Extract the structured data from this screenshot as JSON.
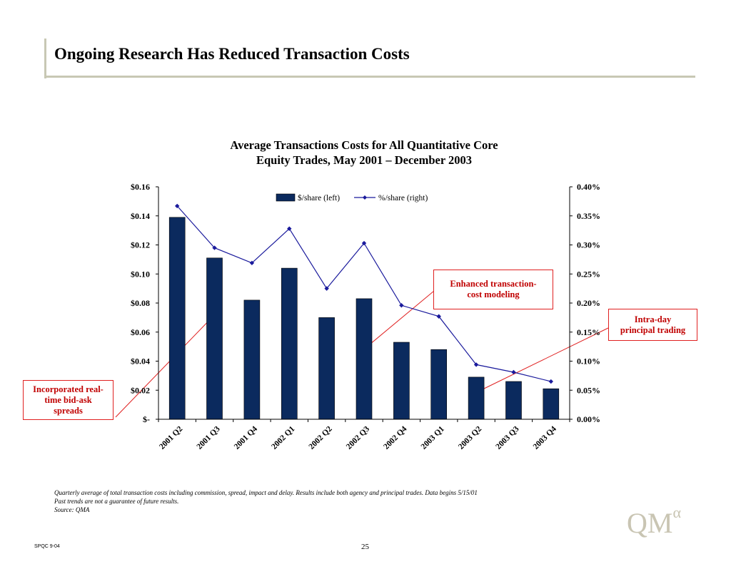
{
  "page": {
    "title": "Ongoing Research Has Reduced Transaction Costs",
    "footnote_lines": [
      "Quarterly average of total transaction costs including commission, spread, impact and delay.  Results include both agency and principal trades.  Data begins 5/15/01",
      "Past trends are not a guarantee of future results.",
      "Source: QMA"
    ],
    "footer_code": "SPQC 9-04",
    "page_number": "25",
    "logo_text": "QM",
    "logo_superscript": "α"
  },
  "chart_data": {
    "type": "bar",
    "title_lines": [
      "Average Transactions Costs for All Quantitative Core",
      "Equity Trades, May 2001 – December 2003"
    ],
    "categories": [
      "2001 Q2",
      "2001 Q3",
      "2001 Q4",
      "2002 Q1",
      "2002 Q2",
      "2002 Q3",
      "2002 Q4",
      "2003 Q1",
      "2003 Q2",
      "2003 Q3",
      "2003 Q4"
    ],
    "series": [
      {
        "name": "$/share (left)",
        "type": "bar",
        "axis": "left",
        "color": "#0b2a5e",
        "values": [
          0.139,
          0.111,
          0.082,
          0.104,
          0.07,
          0.083,
          0.053,
          0.048,
          0.029,
          0.026,
          0.021
        ]
      },
      {
        "name": "%/share (right)",
        "type": "line",
        "axis": "right",
        "color": "#1a1a9c",
        "values": [
          0.367,
          0.295,
          0.269,
          0.328,
          0.225,
          0.303,
          0.196,
          0.177,
          0.094,
          0.081,
          0.065
        ]
      }
    ],
    "y_left": {
      "min": 0,
      "max": 0.16,
      "ticks": [
        "$-",
        "$0.02",
        "$0.04",
        "$0.06",
        "$0.08",
        "$0.10",
        "$0.12",
        "$0.14",
        "$0.16"
      ]
    },
    "y_right": {
      "min": 0,
      "max": 0.4,
      "ticks": [
        "0.00%",
        "0.05%",
        "0.10%",
        "0.15%",
        "0.20%",
        "0.25%",
        "0.30%",
        "0.35%",
        "0.40%"
      ]
    },
    "grid": false,
    "legend_position": "top-center",
    "annotations": [
      {
        "text": "Incorporated real-time bid-ask spreads",
        "lines": [
          "Incorporated real-",
          "time bid-ask",
          "spreads"
        ]
      },
      {
        "text": "Enhanced transaction-cost modeling",
        "lines": [
          "Enhanced transaction-",
          "cost modeling"
        ]
      },
      {
        "text": "Intra-day principal trading",
        "lines": [
          "Intra-day",
          "principal trading"
        ]
      }
    ]
  }
}
